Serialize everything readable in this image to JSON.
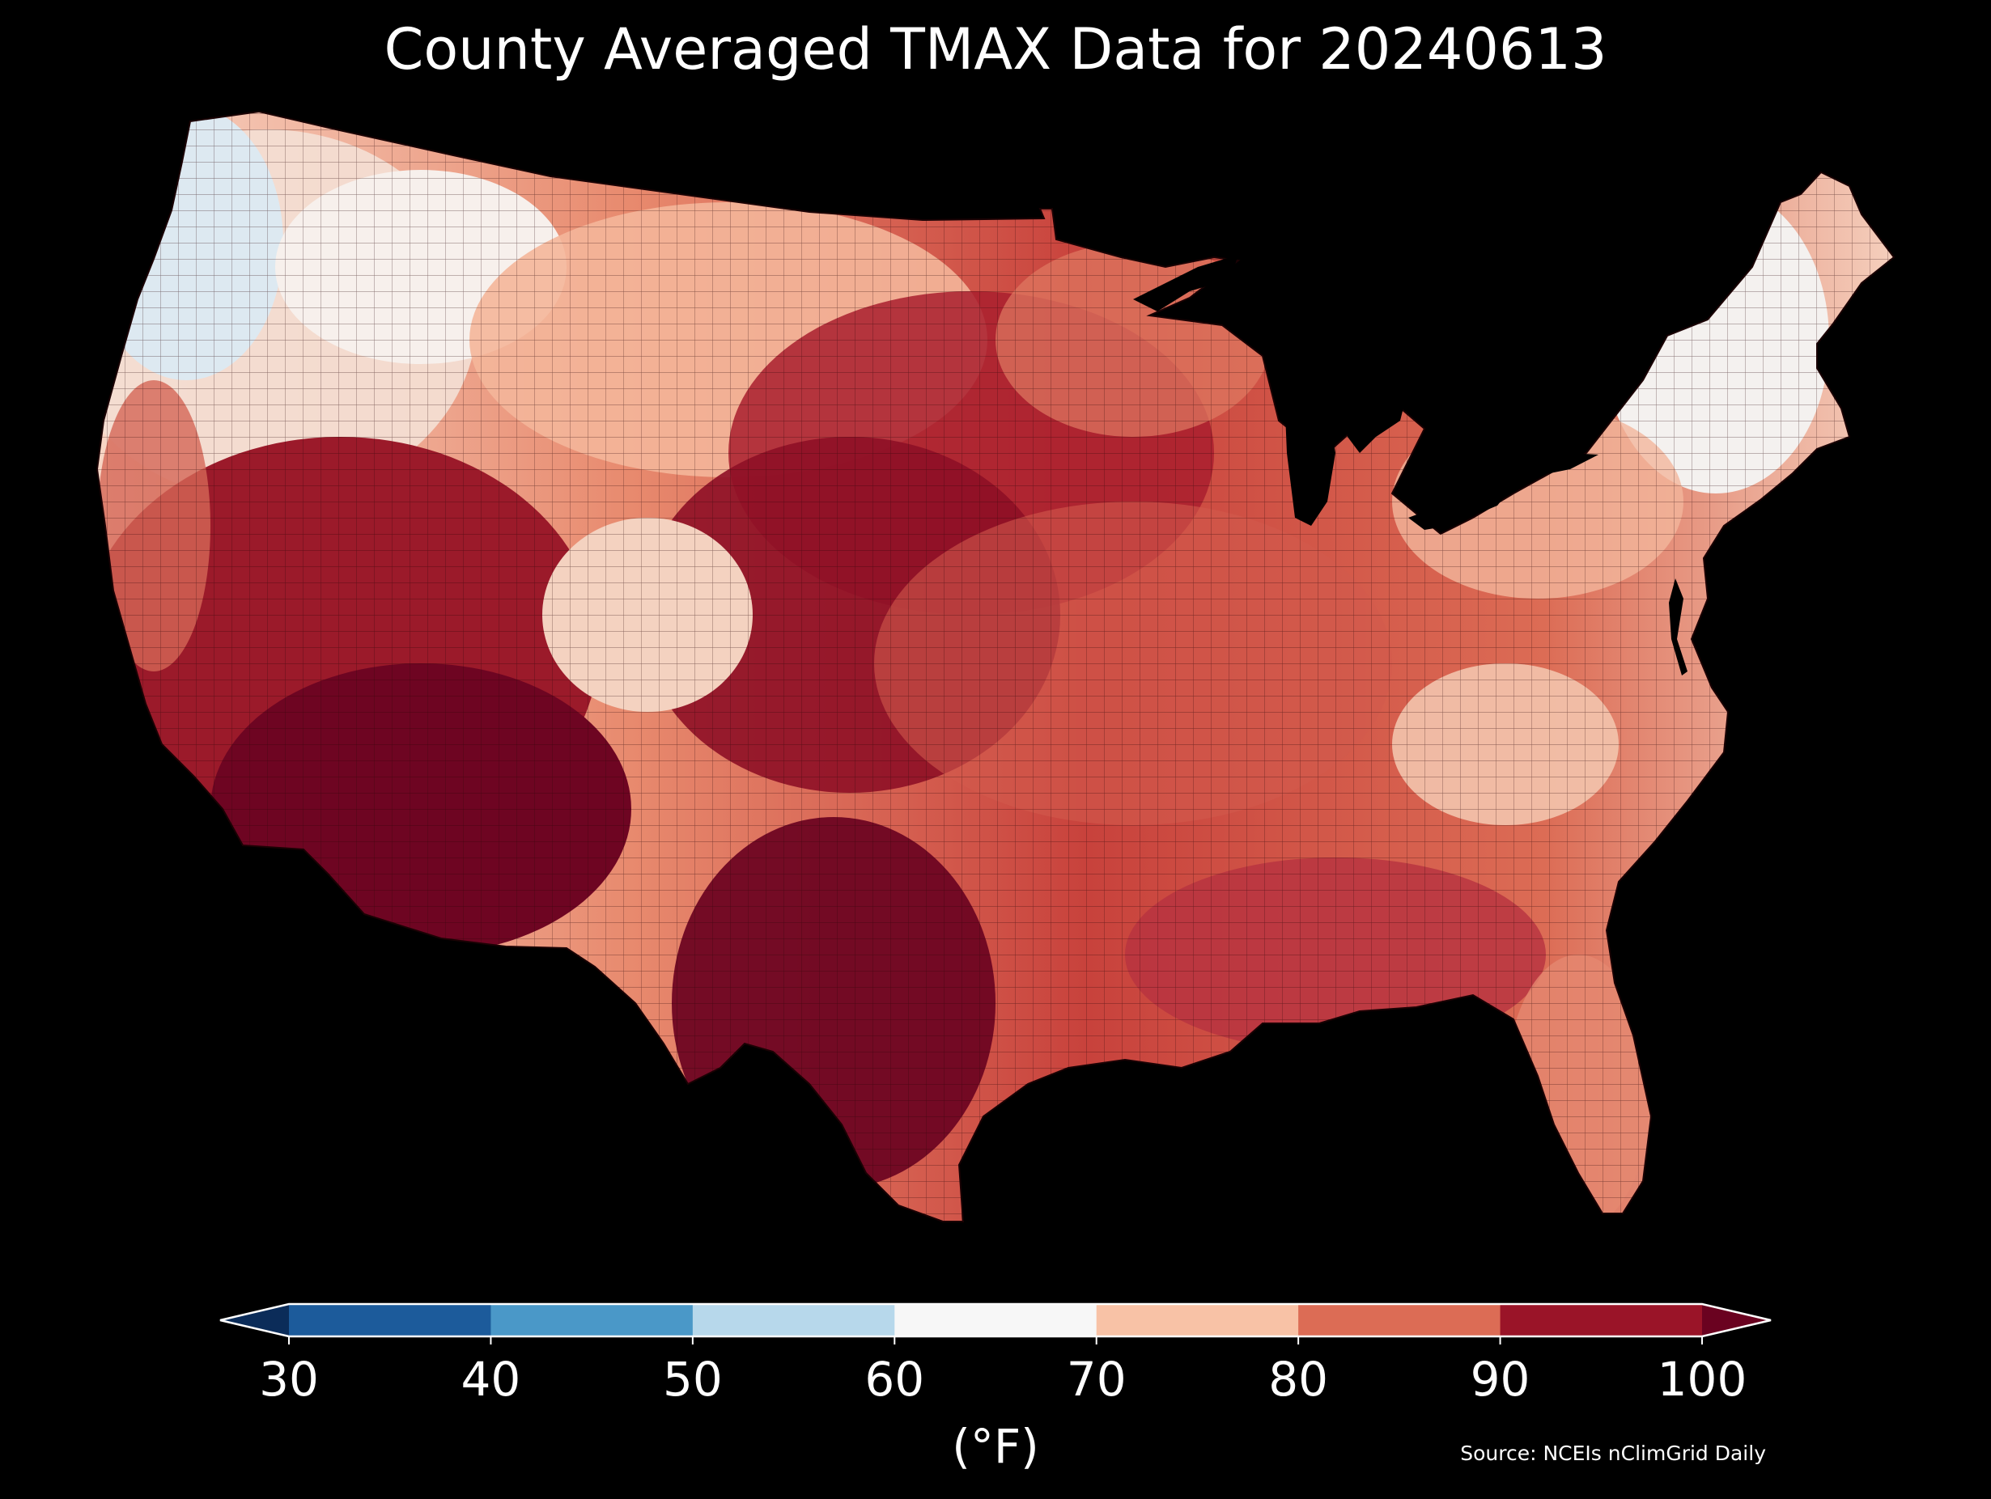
{
  "title": "County Averaged TMAX Data for 20240613",
  "map": {
    "region": "Contiguous United States",
    "variable": "TMAX",
    "date": "20240613",
    "boundaries": "counties",
    "background": "#000000",
    "coast_lake_fill": "#000000",
    "county_line_color": "#2a0508",
    "regional_pattern": [
      {
        "region": "northwest-coast",
        "bin": "50-60",
        "color": "#d9e9f3"
      },
      {
        "region": "northern-rockies",
        "bin": "60-70",
        "color": "#f7f7f7"
      },
      {
        "region": "northern-plains",
        "bin": "70-80",
        "color": "#f8c2a6"
      },
      {
        "region": "central-plains",
        "bin": "90-100",
        "color": "#9b1a2a"
      },
      {
        "region": "desert-southwest",
        "bin": ">100",
        "color": "#6a0220"
      },
      {
        "region": "great-lakes",
        "bin": "80-90",
        "color": "#d96d58"
      },
      {
        "region": "new-england",
        "bin": "60-70",
        "color": "#f7f7f7"
      },
      {
        "region": "southeast",
        "bin": "80-90",
        "color": "#cc4a40"
      }
    ]
  },
  "colorbar": {
    "unit_label": "(°F)",
    "ticks": [
      "30",
      "40",
      "50",
      "60",
      "70",
      "80",
      "90",
      "100"
    ],
    "bins": [
      {
        "range": "<30",
        "color": "#0b2c59"
      },
      {
        "range": "30-40",
        "color": "#1c5b9b"
      },
      {
        "range": "40-50",
        "color": "#4a98c8"
      },
      {
        "range": "50-60",
        "color": "#b7d8eb"
      },
      {
        "range": "60-70",
        "color": "#f7f7f7"
      },
      {
        "range": "70-80",
        "color": "#f8c2a6"
      },
      {
        "range": "80-90",
        "color": "#dc6c55"
      },
      {
        "range": "90-100",
        "color": "#9a1428"
      },
      {
        "range": ">100",
        "color": "#6a0220"
      }
    ]
  },
  "source": "Source: NCEIs nClimGrid Daily"
}
